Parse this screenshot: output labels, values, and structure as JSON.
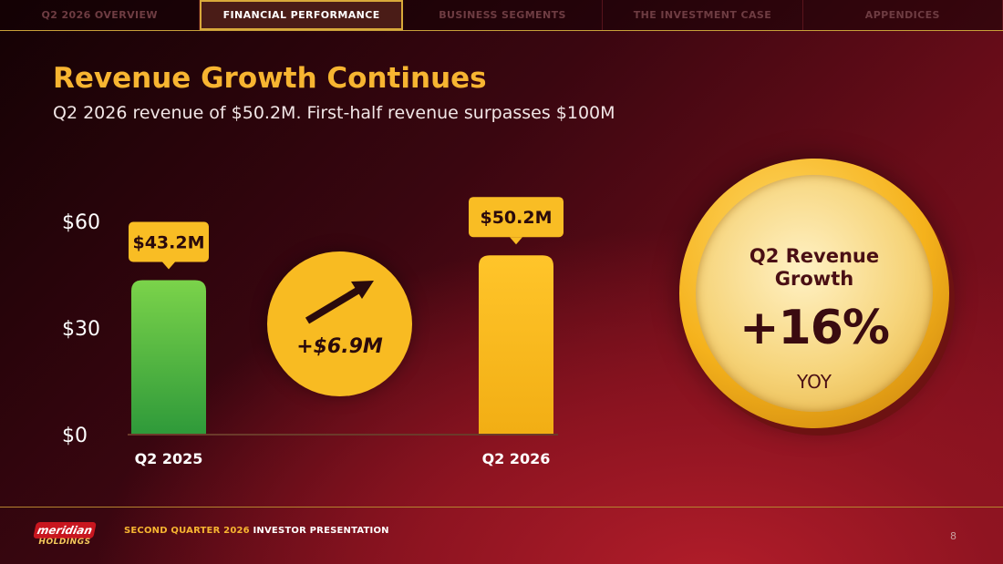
{
  "nav": {
    "tabs": [
      {
        "label": "Q2 2026 OVERVIEW",
        "active": false
      },
      {
        "label": "FINANCIAL PERFORMANCE",
        "active": true
      },
      {
        "label": "BUSINESS SEGMENTS",
        "active": false
      },
      {
        "label": "THE INVESTMENT CASE",
        "active": false
      },
      {
        "label": "APPENDICES",
        "active": false
      }
    ]
  },
  "header": {
    "title": "Revenue Growth Continues",
    "subtitle": "Q2 2026 revenue of $50.2M. First-half revenue surpasses $100M"
  },
  "chart_data": {
    "type": "bar",
    "categories": [
      "Q2 2025",
      "Q2 2026"
    ],
    "values": [
      43.2,
      50.2
    ],
    "data_labels": [
      "$43.2M",
      "$50.2M"
    ],
    "bar_colors": [
      [
        "#7bd34a",
        "#2f9a3a"
      ],
      [
        "#ffc52a",
        "#f2ae14"
      ]
    ],
    "yticks": [
      0,
      30,
      60
    ],
    "ytick_labels": [
      "$0",
      "$30",
      "$60"
    ],
    "ylim": [
      0,
      60
    ],
    "change_label": "+$6.9M",
    "title": "",
    "xlabel": "",
    "ylabel": ""
  },
  "kpi": {
    "title_line1": "Q2 Revenue",
    "title_line2": "Growth",
    "value": "+16%",
    "unit": "YOY"
  },
  "footer": {
    "logo_top": "meridian",
    "logo_bottom": "HOLDINGS",
    "text_highlight": "SECOND QUARTER 2026",
    "text_rest": " INVESTOR PRESENTATION",
    "page_number": "8"
  },
  "colors": {
    "accent": "#f7b531",
    "nav_border": "#d8a93a",
    "background_dark": "#140204",
    "background_red": "#b21d2a"
  }
}
